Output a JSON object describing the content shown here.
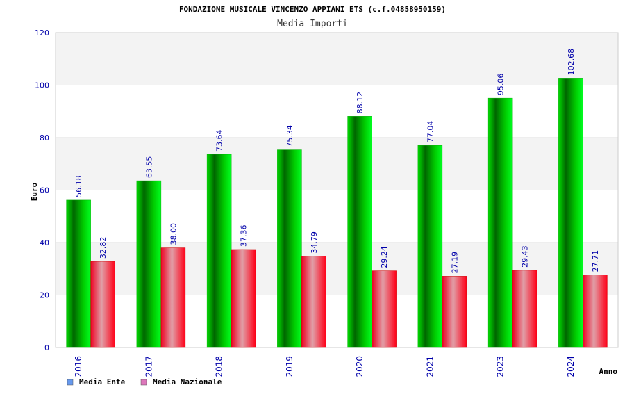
{
  "chart_data": {
    "type": "bar",
    "title": "FONDAZIONE MUSICALE VINCENZO APPIANI ETS (c.f.04858950159)",
    "subtitle": "Media Importi",
    "xlabel": "Anno",
    "ylabel": "Euro",
    "ylim": [
      0,
      120
    ],
    "yticks": [
      "0",
      "20",
      "40",
      "60",
      "80",
      "100",
      "120"
    ],
    "grid": true,
    "legend_position": "bottom-left",
    "categories": [
      "2016",
      "2017",
      "2018",
      "2019",
      "2020",
      "2021",
      "2023",
      "2024"
    ],
    "series": [
      {
        "name": "Media Ente",
        "values": [
          56.18,
          63.55,
          73.64,
          75.34,
          88.12,
          77.04,
          95.06,
          102.68
        ],
        "labels": [
          "56.18",
          "63.55",
          "73.64",
          "75.34",
          "88.12",
          "77.04",
          "95.06",
          "102.68"
        ],
        "color": "#00cc00",
        "legend_color": "#6699ee"
      },
      {
        "name": "Media Nazionale",
        "values": [
          32.82,
          38.0,
          37.36,
          34.79,
          29.24,
          27.19,
          29.43,
          27.71
        ],
        "labels": [
          "32.82",
          "38.00",
          "37.36",
          "34.79",
          "29.24",
          "27.19",
          "29.43",
          "27.71"
        ],
        "color": "#ee0022",
        "legend_color": "#dd77bb"
      }
    ]
  }
}
